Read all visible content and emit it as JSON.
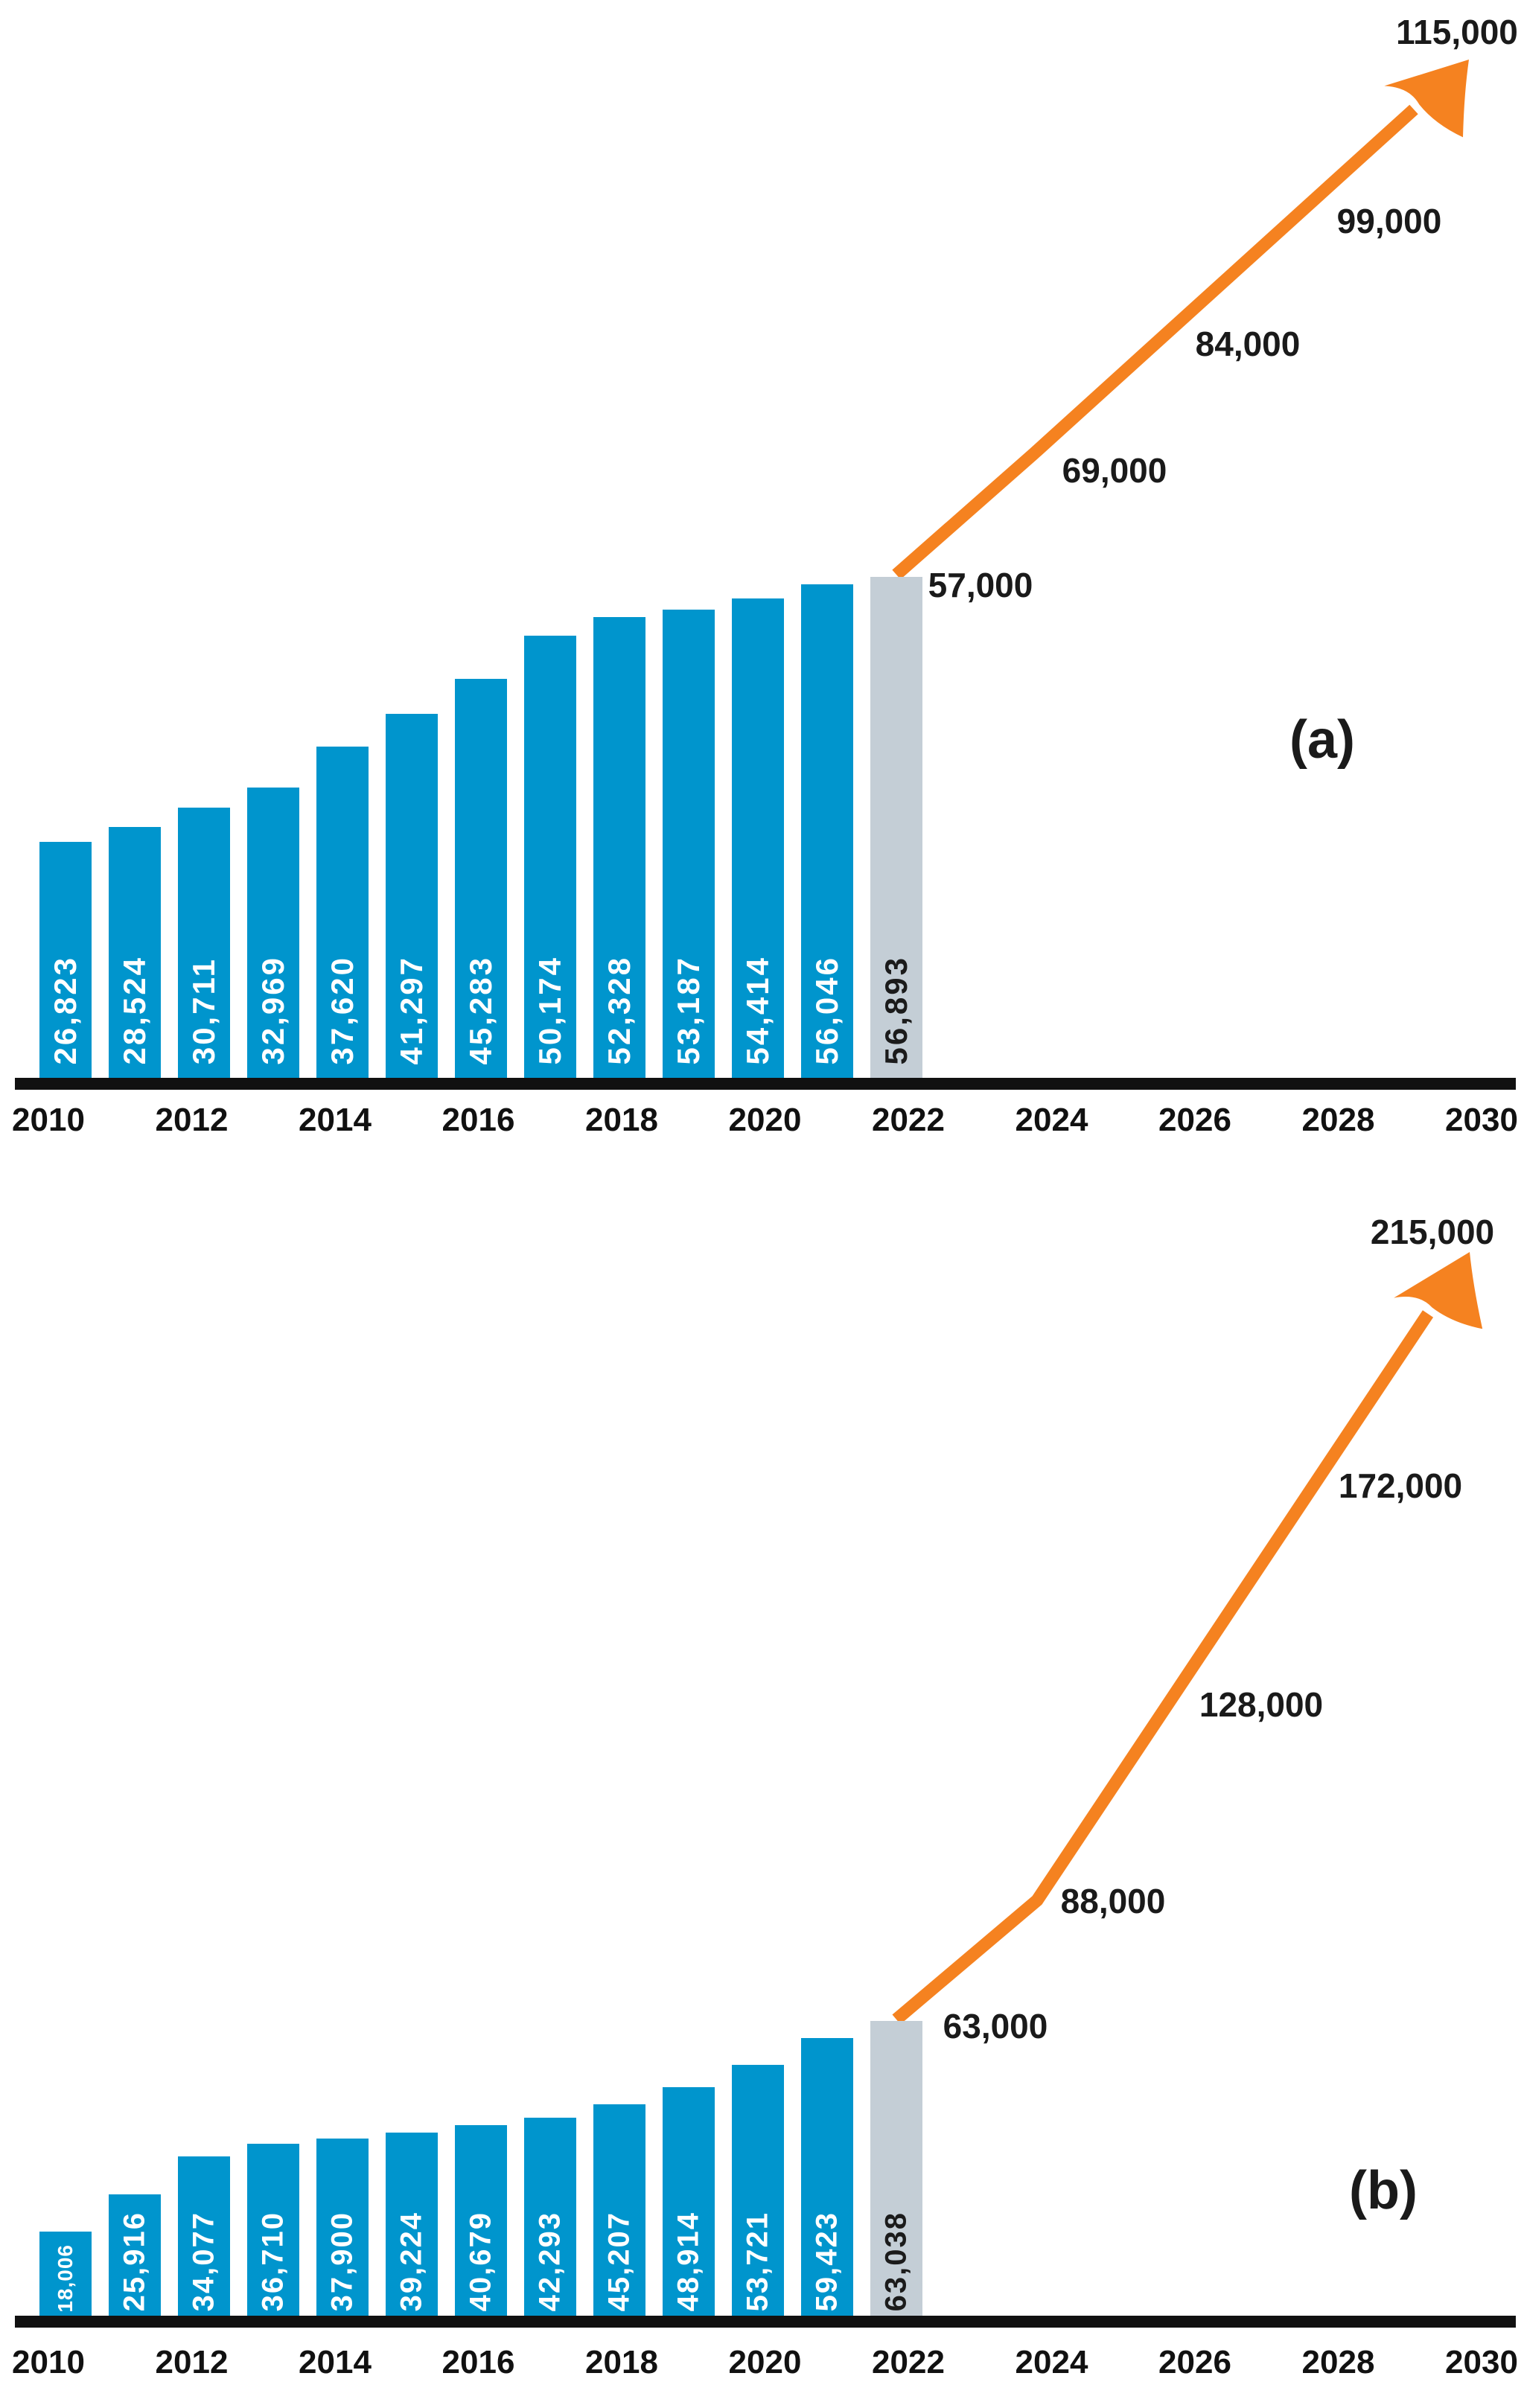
{
  "colors": {
    "bar_blue": "#0095CD",
    "bar_gray": "#C4CED6",
    "arrow_orange": "#F58220",
    "axis_black": "#111111",
    "bar_label_white": "#FFFFFF",
    "bar_label_dark": "#1B1B1B",
    "text_dark": "#1A1A1A"
  },
  "charts": [
    {
      "panel_label": "(a)",
      "axis_years": [
        "2010",
        "2012",
        "2014",
        "2016",
        "2018",
        "2020",
        "2022",
        "2024",
        "2026",
        "2028",
        "2030"
      ],
      "bars": [
        {
          "year": "2010",
          "value": 26823,
          "label": "26,823",
          "projected": false
        },
        {
          "year": "2011",
          "value": 28524,
          "label": "28,524",
          "projected": false
        },
        {
          "year": "2012",
          "value": 30711,
          "label": "30,711",
          "projected": false
        },
        {
          "year": "2013",
          "value": 32969,
          "label": "32,969",
          "projected": false
        },
        {
          "year": "2014",
          "value": 37620,
          "label": "37,620",
          "projected": false
        },
        {
          "year": "2015",
          "value": 41297,
          "label": "41,297",
          "projected": false
        },
        {
          "year": "2016",
          "value": 45283,
          "label": "45,283",
          "projected": false
        },
        {
          "year": "2017",
          "value": 50174,
          "label": "50,174",
          "projected": false
        },
        {
          "year": "2018",
          "value": 52328,
          "label": "52,328",
          "projected": false
        },
        {
          "year": "2019",
          "value": 53187,
          "label": "53,187",
          "projected": false
        },
        {
          "year": "2020",
          "value": 54414,
          "label": "54,414",
          "projected": false
        },
        {
          "year": "2021",
          "value": 56046,
          "label": "56,046",
          "projected": false
        },
        {
          "year": "2022",
          "value": 56893,
          "label": "56,893",
          "projected": true
        }
      ],
      "projection_labels": [
        {
          "value": 57000,
          "label": "57,000"
        },
        {
          "value": 69000,
          "label": "69,000"
        },
        {
          "value": 84000,
          "label": "84,000"
        },
        {
          "value": 99000,
          "label": "99,000"
        },
        {
          "value": 115000,
          "label": "115,000"
        }
      ]
    },
    {
      "panel_label": "(b)",
      "axis_years": [
        "2010",
        "2012",
        "2014",
        "2016",
        "2018",
        "2020",
        "2022",
        "2024",
        "2026",
        "2028",
        "2030"
      ],
      "bars": [
        {
          "year": "2010",
          "value": 18006,
          "label": "18,006",
          "projected": false
        },
        {
          "year": "2011",
          "value": 25916,
          "label": "25,916",
          "projected": false
        },
        {
          "year": "2012",
          "value": 34077,
          "label": "34,077",
          "projected": false
        },
        {
          "year": "2013",
          "value": 36710,
          "label": "36,710",
          "projected": false
        },
        {
          "year": "2014",
          "value": 37900,
          "label": "37,900",
          "projected": false
        },
        {
          "year": "2015",
          "value": 39224,
          "label": "39,224",
          "projected": false
        },
        {
          "year": "2016",
          "value": 40679,
          "label": "40,679",
          "projected": false
        },
        {
          "year": "2017",
          "value": 42293,
          "label": "42,293",
          "projected": false
        },
        {
          "year": "2018",
          "value": 45207,
          "label": "45,207",
          "projected": false
        },
        {
          "year": "2019",
          "value": 48914,
          "label": "48,914",
          "projected": false
        },
        {
          "year": "2020",
          "value": 53721,
          "label": "53,721",
          "projected": false
        },
        {
          "year": "2021",
          "value": 59423,
          "label": "59,423",
          "projected": false
        },
        {
          "year": "2022",
          "value": 63038,
          "label": "63,038",
          "projected": true
        }
      ],
      "projection_labels": [
        {
          "value": 63000,
          "label": "63,000"
        },
        {
          "value": 88000,
          "label": "88,000"
        },
        {
          "value": 128000,
          "label": "128,000"
        },
        {
          "value": 172000,
          "label": "172,000"
        },
        {
          "value": 215000,
          "label": "215,000"
        }
      ]
    }
  ],
  "chart_data": [
    {
      "type": "bar",
      "title": "(a)",
      "categories": [
        2010,
        2011,
        2012,
        2013,
        2014,
        2015,
        2016,
        2017,
        2018,
        2019,
        2020,
        2021,
        2022
      ],
      "values": [
        26823,
        28524,
        30711,
        32969,
        37620,
        41297,
        45283,
        50174,
        52328,
        53187,
        54414,
        56046,
        56893
      ],
      "bar_roles": [
        "actual",
        "actual",
        "actual",
        "actual",
        "actual",
        "actual",
        "actual",
        "actual",
        "actual",
        "actual",
        "actual",
        "actual",
        "projected"
      ],
      "projection_line": {
        "x": [
          2022,
          2024,
          2026,
          2028,
          2030
        ],
        "values": [
          57000,
          69000,
          84000,
          99000,
          115000
        ],
        "style": "orange-arrow"
      },
      "x_ticks": [
        2010,
        2012,
        2014,
        2016,
        2018,
        2020,
        2022,
        2024,
        2026,
        2028,
        2030
      ],
      "xlabel": "",
      "ylabel": "",
      "ylim": [
        0,
        120000
      ],
      "grid": false,
      "legend": false,
      "bar_value_labels": "rotated-90-inside-bars"
    },
    {
      "type": "bar",
      "title": "(b)",
      "categories": [
        2010,
        2011,
        2012,
        2013,
        2014,
        2015,
        2016,
        2017,
        2018,
        2019,
        2020,
        2021,
        2022
      ],
      "values": [
        18006,
        25916,
        34077,
        36710,
        37900,
        39224,
        40679,
        42293,
        45207,
        48914,
        53721,
        59423,
        63038
      ],
      "bar_roles": [
        "actual",
        "actual",
        "actual",
        "actual",
        "actual",
        "actual",
        "actual",
        "actual",
        "actual",
        "actual",
        "actual",
        "actual",
        "projected"
      ],
      "projection_line": {
        "x": [
          2022,
          2024,
          2026,
          2028,
          2030
        ],
        "values": [
          63000,
          88000,
          128000,
          172000,
          215000
        ],
        "style": "orange-arrow"
      },
      "x_ticks": [
        2010,
        2012,
        2014,
        2016,
        2018,
        2020,
        2022,
        2024,
        2026,
        2028,
        2030
      ],
      "xlabel": "",
      "ylabel": "",
      "ylim": [
        0,
        220000
      ],
      "grid": false,
      "legend": false,
      "bar_value_labels": "rotated-90-inside-bars"
    }
  ]
}
